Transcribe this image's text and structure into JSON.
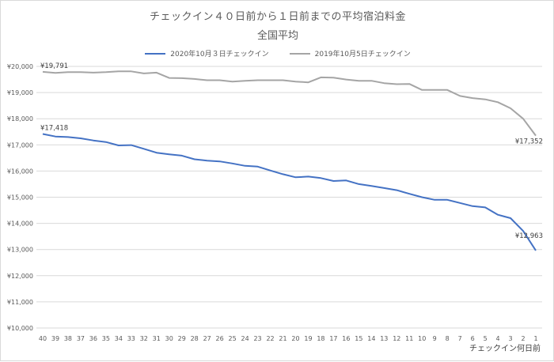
{
  "chart_data": {
    "type": "line",
    "title": "チェックイン４０日前から１日前までの平均宿泊料金",
    "subtitle": "全国平均",
    "xlabel": "チェックイン何日前",
    "ylabel": "",
    "ylim": [
      10000,
      20000
    ],
    "y_ticks": [
      "¥10,000",
      "¥11,000",
      "¥12,000",
      "¥13,000",
      "¥14,000",
      "¥15,000",
      "¥16,000",
      "¥17,000",
      "¥18,000",
      "¥19,000",
      "¥20,000"
    ],
    "y_tick_values": [
      10000,
      11000,
      12000,
      13000,
      14000,
      15000,
      16000,
      17000,
      18000,
      19000,
      20000
    ],
    "grid": true,
    "legend_position": "top-center",
    "categories": [
      "40",
      "39",
      "38",
      "37",
      "36",
      "35",
      "34",
      "33",
      "32",
      "31",
      "30",
      "29",
      "28",
      "27",
      "26",
      "25",
      "24",
      "23",
      "22",
      "21",
      "20",
      "19",
      "18",
      "17",
      "16",
      "15",
      "14",
      "13",
      "12",
      "11",
      "10",
      "9",
      "8",
      "7",
      "6",
      "5",
      "4",
      "3",
      "2",
      "1"
    ],
    "series": [
      {
        "name": "2020年10月３日チェックイン",
        "color": "#4472c4",
        "values": [
          17418,
          17320,
          17300,
          17250,
          17170,
          17110,
          16980,
          16990,
          16850,
          16700,
          16640,
          16590,
          16450,
          16400,
          16370,
          16290,
          16200,
          16170,
          16020,
          15880,
          15760,
          15790,
          15730,
          15620,
          15640,
          15500,
          15430,
          15350,
          15270,
          15130,
          15000,
          14900,
          14900,
          14780,
          14660,
          14610,
          14330,
          14200,
          13710,
          12963
        ],
        "labels": [
          {
            "index": 0,
            "text": "¥17,418"
          },
          {
            "index": 39,
            "text": "¥12,963"
          }
        ]
      },
      {
        "name": "2019年10月5日チェックイン",
        "color": "#a5a5a5",
        "values": [
          19791,
          19750,
          19780,
          19780,
          19760,
          19780,
          19810,
          19810,
          19730,
          19760,
          19560,
          19550,
          19520,
          19470,
          19470,
          19420,
          19450,
          19470,
          19470,
          19470,
          19420,
          19390,
          19580,
          19570,
          19500,
          19450,
          19450,
          19360,
          19320,
          19330,
          19100,
          19100,
          19100,
          18870,
          18790,
          18740,
          18630,
          18400,
          18000,
          17352
        ],
        "labels": [
          {
            "index": 0,
            "text": "¥19,791"
          },
          {
            "index": 39,
            "text": "¥17,352"
          }
        ]
      }
    ]
  }
}
